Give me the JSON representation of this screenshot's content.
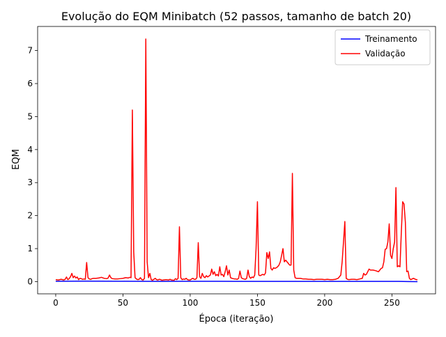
{
  "chart_data": {
    "type": "line",
    "title": "Evolução do EQM Minibatch (52 passos, tamanho de batch 20)",
    "xlabel": "Época (iteração)",
    "ylabel": "EQM",
    "xlim": [
      -13.45,
      282.45
    ],
    "ylim": [
      -0.37,
      7.73
    ],
    "x_ticks": [
      0,
      50,
      100,
      150,
      200,
      250
    ],
    "y_ticks": [
      0,
      1,
      2,
      3,
      4,
      5,
      6,
      7
    ],
    "legend_position": "top-right",
    "grid": false,
    "series": [
      {
        "name": "Treinamento",
        "color": "#0000ff",
        "points": [
          [
            0,
            0.01
          ],
          [
            20,
            0.015
          ],
          [
            40,
            0.012
          ],
          [
            60,
            0.01
          ],
          [
            80,
            0.008
          ],
          [
            100,
            0.01
          ],
          [
            120,
            0.009
          ],
          [
            140,
            0.008
          ],
          [
            160,
            0.007
          ],
          [
            180,
            0.007
          ],
          [
            200,
            0.006
          ],
          [
            220,
            0.007
          ],
          [
            240,
            0.008
          ],
          [
            255,
            0.007
          ],
          [
            262,
            0.003
          ],
          [
            269,
            0.0
          ]
        ]
      },
      {
        "name": "Validação",
        "color": "#ff0000",
        "points": [
          [
            0,
            0.06
          ],
          [
            2,
            0.05
          ],
          [
            4,
            0.07
          ],
          [
            6,
            0.05
          ],
          [
            7,
            0.07
          ],
          [
            8,
            0.14
          ],
          [
            9,
            0.06
          ],
          [
            10,
            0.09
          ],
          [
            11,
            0.15
          ],
          [
            12,
            0.25
          ],
          [
            13,
            0.12
          ],
          [
            14,
            0.17
          ],
          [
            15,
            0.11
          ],
          [
            16,
            0.14
          ],
          [
            17,
            0.06
          ],
          [
            18,
            0.1
          ],
          [
            19,
            0.09
          ],
          [
            20,
            0.07
          ],
          [
            21,
            0.08
          ],
          [
            22,
            0.07
          ],
          [
            23,
            0.58
          ],
          [
            24,
            0.12
          ],
          [
            25,
            0.08
          ],
          [
            26,
            0.07
          ],
          [
            27,
            0.09
          ],
          [
            28,
            0.1
          ],
          [
            30,
            0.1
          ],
          [
            32,
            0.11
          ],
          [
            34,
            0.13
          ],
          [
            36,
            0.1
          ],
          [
            38,
            0.09
          ],
          [
            39,
            0.11
          ],
          [
            40,
            0.2
          ],
          [
            41,
            0.12
          ],
          [
            42,
            0.09
          ],
          [
            44,
            0.08
          ],
          [
            46,
            0.08
          ],
          [
            48,
            0.09
          ],
          [
            50,
            0.1
          ],
          [
            52,
            0.12
          ],
          [
            54,
            0.11
          ],
          [
            55,
            0.13
          ],
          [
            56,
            0.12
          ],
          [
            57,
            5.2
          ],
          [
            58,
            0.9
          ],
          [
            59,
            0.12
          ],
          [
            60,
            0.08
          ],
          [
            61,
            0.06
          ],
          [
            62,
            0.07
          ],
          [
            63,
            0.12
          ],
          [
            64,
            0.06
          ],
          [
            65,
            0.05
          ],
          [
            66,
            0.1
          ],
          [
            67,
            7.35
          ],
          [
            68,
            0.6
          ],
          [
            69,
            0.12
          ],
          [
            70,
            0.25
          ],
          [
            71,
            0.06
          ],
          [
            72,
            0.04
          ],
          [
            73,
            0.07
          ],
          [
            74,
            0.1
          ],
          [
            75,
            0.06
          ],
          [
            76,
            0.05
          ],
          [
            77,
            0.07
          ],
          [
            78,
            0.06
          ],
          [
            79,
            0.04
          ],
          [
            80,
            0.05
          ],
          [
            82,
            0.06
          ],
          [
            84,
            0.05
          ],
          [
            85,
            0.07
          ],
          [
            86,
            0.05
          ],
          [
            88,
            0.04
          ],
          [
            89,
            0.09
          ],
          [
            90,
            0.06
          ],
          [
            91,
            0.1
          ],
          [
            92,
            1.66
          ],
          [
            93,
            0.12
          ],
          [
            94,
            0.06
          ],
          [
            95,
            0.08
          ],
          [
            96,
            0.07
          ],
          [
            97,
            0.1
          ],
          [
            98,
            0.06
          ],
          [
            99,
            0.05
          ],
          [
            100,
            0.05
          ],
          [
            101,
            0.08
          ],
          [
            102,
            0.1
          ],
          [
            103,
            0.07
          ],
          [
            104,
            0.07
          ],
          [
            105,
            0.12
          ],
          [
            106,
            1.18
          ],
          [
            107,
            0.15
          ],
          [
            108,
            0.1
          ],
          [
            109,
            0.25
          ],
          [
            110,
            0.15
          ],
          [
            111,
            0.12
          ],
          [
            112,
            0.18
          ],
          [
            113,
            0.14
          ],
          [
            114,
            0.17
          ],
          [
            115,
            0.2
          ],
          [
            116,
            0.38
          ],
          [
            117,
            0.22
          ],
          [
            118,
            0.3
          ],
          [
            119,
            0.18
          ],
          [
            120,
            0.22
          ],
          [
            121,
            0.17
          ],
          [
            122,
            0.45
          ],
          [
            123,
            0.2
          ],
          [
            124,
            0.22
          ],
          [
            125,
            0.15
          ],
          [
            126,
            0.3
          ],
          [
            127,
            0.48
          ],
          [
            128,
            0.2
          ],
          [
            129,
            0.35
          ],
          [
            130,
            0.12
          ],
          [
            131,
            0.1
          ],
          [
            132,
            0.09
          ],
          [
            133,
            0.08
          ],
          [
            134,
            0.08
          ],
          [
            135,
            0.07
          ],
          [
            136,
            0.1
          ],
          [
            137,
            0.32
          ],
          [
            138,
            0.12
          ],
          [
            139,
            0.09
          ],
          [
            140,
            0.08
          ],
          [
            141,
            0.07
          ],
          [
            142,
            0.1
          ],
          [
            143,
            0.35
          ],
          [
            144,
            0.15
          ],
          [
            145,
            0.1
          ],
          [
            146,
            0.14
          ],
          [
            147,
            0.12
          ],
          [
            148,
            0.2
          ],
          [
            149,
            1.0
          ],
          [
            150,
            2.42
          ],
          [
            151,
            0.2
          ],
          [
            152,
            0.18
          ],
          [
            153,
            0.2
          ],
          [
            154,
            0.22
          ],
          [
            155,
            0.2
          ],
          [
            156,
            0.26
          ],
          [
            157,
            0.88
          ],
          [
            158,
            0.7
          ],
          [
            159,
            0.9
          ],
          [
            160,
            0.4
          ],
          [
            161,
            0.35
          ],
          [
            162,
            0.42
          ],
          [
            163,
            0.4
          ],
          [
            164,
            0.42
          ],
          [
            165,
            0.45
          ],
          [
            166,
            0.5
          ],
          [
            167,
            0.6
          ],
          [
            168,
            0.8
          ],
          [
            169,
            1.0
          ],
          [
            170,
            0.6
          ],
          [
            171,
            0.65
          ],
          [
            172,
            0.6
          ],
          [
            173,
            0.55
          ],
          [
            174,
            0.5
          ],
          [
            175,
            0.5
          ],
          [
            176,
            3.28
          ],
          [
            177,
            0.35
          ],
          [
            178,
            0.12
          ],
          [
            179,
            0.1
          ],
          [
            180,
            0.1
          ],
          [
            182,
            0.1
          ],
          [
            184,
            0.08
          ],
          [
            186,
            0.08
          ],
          [
            188,
            0.07
          ],
          [
            190,
            0.07
          ],
          [
            192,
            0.06
          ],
          [
            194,
            0.07
          ],
          [
            196,
            0.07
          ],
          [
            198,
            0.07
          ],
          [
            200,
            0.06
          ],
          [
            202,
            0.07
          ],
          [
            204,
            0.06
          ],
          [
            206,
            0.06
          ],
          [
            208,
            0.07
          ],
          [
            210,
            0.1
          ],
          [
            212,
            0.2
          ],
          [
            213,
            0.6
          ],
          [
            214,
            1.2
          ],
          [
            215,
            1.82
          ],
          [
            216,
            0.1
          ],
          [
            217,
            0.07
          ],
          [
            218,
            0.06
          ],
          [
            220,
            0.07
          ],
          [
            222,
            0.07
          ],
          [
            224,
            0.06
          ],
          [
            226,
            0.08
          ],
          [
            228,
            0.1
          ],
          [
            229,
            0.25
          ],
          [
            230,
            0.2
          ],
          [
            231,
            0.22
          ],
          [
            232,
            0.3
          ],
          [
            233,
            0.38
          ],
          [
            234,
            0.35
          ],
          [
            236,
            0.35
          ],
          [
            238,
            0.33
          ],
          [
            240,
            0.3
          ],
          [
            241,
            0.35
          ],
          [
            242,
            0.4
          ],
          [
            243,
            0.42
          ],
          [
            244,
            0.6
          ],
          [
            245,
            0.98
          ],
          [
            246,
            1.0
          ],
          [
            247,
            1.2
          ],
          [
            248,
            1.75
          ],
          [
            249,
            0.8
          ],
          [
            250,
            0.7
          ],
          [
            251,
            1.0
          ],
          [
            252,
            1.2
          ],
          [
            253,
            2.85
          ],
          [
            254,
            0.45
          ],
          [
            255,
            0.48
          ],
          [
            256,
            0.45
          ],
          [
            257,
            1.5
          ],
          [
            258,
            2.42
          ],
          [
            259,
            2.35
          ],
          [
            260,
            1.8
          ],
          [
            261,
            0.3
          ],
          [
            262,
            0.32
          ],
          [
            263,
            0.1
          ],
          [
            264,
            0.06
          ],
          [
            265,
            0.08
          ],
          [
            266,
            0.1
          ],
          [
            267,
            0.08
          ],
          [
            268,
            0.06
          ],
          [
            269,
            0.06
          ]
        ]
      }
    ]
  }
}
